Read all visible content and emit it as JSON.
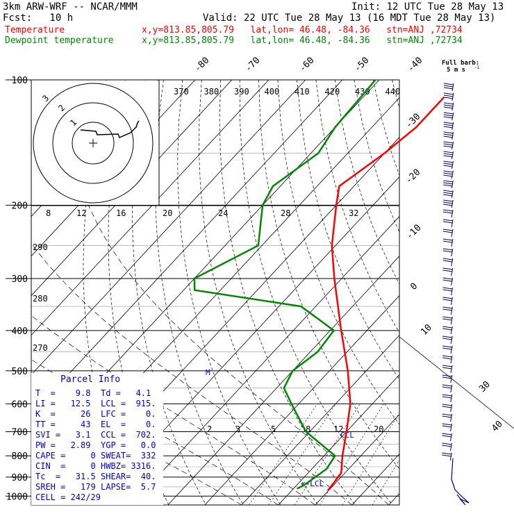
{
  "header": {
    "model": "3km ARW-WRF -- NCAR/MMM",
    "init": "Init: 12 UTC Tue 28 May 13",
    "fcst": "Fcst:   10 h",
    "valid": "Valid: 22 UTC Tue 28 May 13 (16 MDT Tue 28 May 13)",
    "temp_label": "Temperature",
    "temp_loc": "x,y=813.85,805.79   lat,lon= 46.48, -84.36   stn=ANJ ,72734",
    "dew_label": "Dewpoint temperature",
    "dew_loc": "x,y=813.85,805.79   lat,lon= 46.48, -84.36   stn=ANJ ,72734",
    "barb_key_1": "Full barb:",
    "barb_key_2": "5 m s",
    "barb_key_sup": "-1"
  },
  "colors": {
    "temperature": "#ff0000",
    "dewpoint": "#008800",
    "parcel": "#0000cc",
    "wind_barbs": "#000080",
    "isotherm": "#000000"
  },
  "chart_data": {
    "type": "skew-t",
    "y_axis": "pressure (hPa), log scale",
    "pressure_labels": [
      100,
      200,
      300,
      400,
      500,
      600,
      700,
      800,
      900,
      1000
    ],
    "isotherm_top_labels": [
      "-80",
      "-70",
      "-60",
      "-50",
      "-40"
    ],
    "isotherm_right_labels": [
      "-30",
      "-20",
      "-10",
      "0",
      "10",
      "30",
      "40"
    ],
    "theta_labels": [
      "370",
      "380",
      "390",
      "400",
      "410",
      "420",
      "430",
      "440"
    ],
    "theta_left_labels": [
      "290",
      "280",
      "270"
    ],
    "mixing_ratio_labels": [
      "2",
      "3",
      "5",
      "8",
      "12",
      "20"
    ],
    "hodograph_speed_labels": [
      "8",
      "12",
      "16",
      "20",
      "24",
      "28",
      "32"
    ],
    "hodograph_units": "kts",
    "hodograph_ring_labels": [
      "3",
      "2",
      "1"
    ],
    "annotations": [
      "M",
      "CCL",
      "<-LCL"
    ],
    "temperature_profile": [
      {
        "p": 110,
        "t": -58
      },
      {
        "p": 130,
        "t": -58
      },
      {
        "p": 150,
        "t": -60
      },
      {
        "p": 180,
        "t": -64
      },
      {
        "p": 200,
        "t": -60
      },
      {
        "p": 250,
        "t": -51
      },
      {
        "p": 300,
        "t": -42
      },
      {
        "p": 400,
        "t": -27
      },
      {
        "p": 500,
        "t": -15
      },
      {
        "p": 600,
        "t": -6
      },
      {
        "p": 700,
        "t": 0
      },
      {
        "p": 800,
        "t": 5
      },
      {
        "p": 880,
        "t": 9
      },
      {
        "p": 930,
        "t": 9.5
      },
      {
        "p": 970,
        "t": 9.8
      }
    ],
    "dewpoint_profile": [
      {
        "p": 100,
        "t": -81
      },
      {
        "p": 130,
        "t": -80
      },
      {
        "p": 150,
        "t": -78
      },
      {
        "p": 180,
        "t": -82
      },
      {
        "p": 200,
        "t": -80
      },
      {
        "p": 250,
        "t": -71
      },
      {
        "p": 300,
        "t": -80
      },
      {
        "p": 320,
        "t": -77
      },
      {
        "p": 350,
        "t": -44
      },
      {
        "p": 400,
        "t": -29
      },
      {
        "p": 450,
        "t": -28
      },
      {
        "p": 500,
        "t": -30
      },
      {
        "p": 550,
        "t": -28
      },
      {
        "p": 600,
        "t": -22
      },
      {
        "p": 700,
        "t": -11
      },
      {
        "p": 800,
        "t": 3
      },
      {
        "p": 860,
        "t": 4
      },
      {
        "p": 900,
        "t": 3
      },
      {
        "p": 940,
        "t": 2
      },
      {
        "p": 960,
        "t": 1
      }
    ]
  },
  "parcel_info": {
    "title": "Parcel Info",
    "rows": [
      {
        "left": "T  =    9.8",
        "right": "Td =   4.1"
      },
      {
        "left": "LI =   12.5",
        "right": "LCL =  915."
      },
      {
        "left": "K  =     26",
        "right": "LFC =    0."
      },
      {
        "left": "TT =     43",
        "right": "EL  =    0."
      },
      {
        "left": "SVI =   3.1",
        "right": "CCL =  702."
      },
      {
        "left": "PW =   2.89",
        "right": "YGP =   0.0"
      },
      {
        "left": "CAPE =     0",
        "right": "SWEAT=  332"
      },
      {
        "left": "CIN  =     0",
        "right": "HWBZ= 3316."
      },
      {
        "left": "Tc  =   31.5",
        "right": "SHEAR=  40."
      },
      {
        "left": "SREH =   179",
        "right": "LAPSE=  5.7"
      },
      {
        "left": "CELL = 242/29",
        "right": ""
      }
    ]
  }
}
